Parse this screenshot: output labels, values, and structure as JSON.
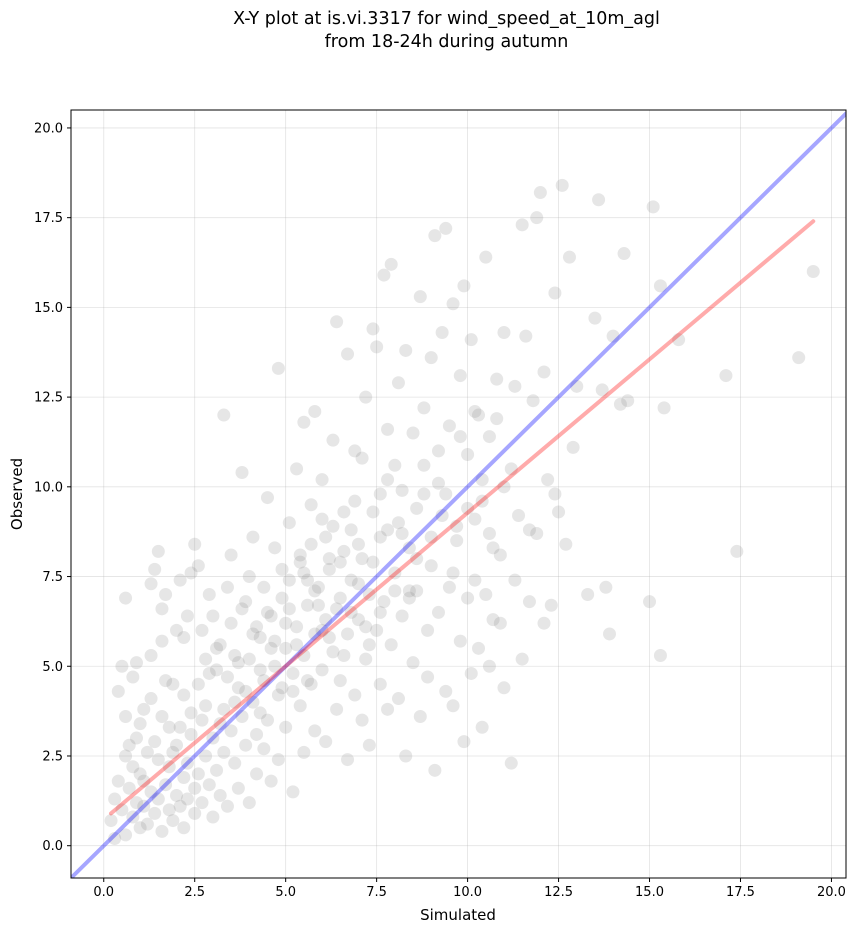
{
  "chart_data": {
    "type": "scatter",
    "title_line1": "X-Y plot at is.vi.3317 for wind_speed_at_10m_agl",
    "title_line2": "from 18-24h during autumn",
    "xlabel": "Simulated",
    "ylabel": "Observed",
    "xlim": [
      -0.9,
      20.4
    ],
    "ylim": [
      -0.9,
      20.5
    ],
    "xticks": [
      "0.0",
      "2.5",
      "5.0",
      "7.5",
      "10.0",
      "12.5",
      "15.0",
      "17.5",
      "20.0"
    ],
    "yticks": [
      "0.0",
      "2.5",
      "5.0",
      "7.5",
      "10.0",
      "12.5",
      "15.0",
      "17.5",
      "20.0"
    ],
    "grid": true,
    "point_color": "#808080",
    "reference_line": {
      "color": "#0000ff",
      "from": [
        -0.9,
        -0.9
      ],
      "to": [
        20.4,
        20.4
      ]
    },
    "fit_line": {
      "color": "#ff0000",
      "from": [
        0.2,
        0.9
      ],
      "to": [
        19.5,
        17.4
      ]
    },
    "points": [
      [
        0.3,
        1.3
      ],
      [
        0.4,
        4.3
      ],
      [
        0.5,
        5.0
      ],
      [
        0.6,
        3.6
      ],
      [
        0.6,
        6.9
      ],
      [
        0.7,
        2.8
      ],
      [
        0.8,
        2.2
      ],
      [
        0.8,
        4.7
      ],
      [
        0.9,
        5.1
      ],
      [
        1.0,
        3.4
      ],
      [
        1.1,
        1.8
      ],
      [
        1.2,
        2.6
      ],
      [
        1.3,
        5.3
      ],
      [
        1.3,
        7.3
      ],
      [
        1.4,
        7.7
      ],
      [
        1.5,
        8.2
      ],
      [
        1.6,
        5.7
      ],
      [
        1.6,
        6.6
      ],
      [
        1.7,
        7.0
      ],
      [
        1.8,
        3.3
      ],
      [
        1.9,
        4.5
      ],
      [
        2.0,
        6.0
      ],
      [
        2.1,
        7.4
      ],
      [
        2.2,
        5.8
      ],
      [
        2.3,
        6.4
      ],
      [
        2.4,
        7.6
      ],
      [
        2.5,
        8.4
      ],
      [
        2.6,
        7.8
      ],
      [
        2.7,
        6.0
      ],
      [
        2.8,
        5.2
      ],
      [
        2.9,
        7.0
      ],
      [
        3.0,
        6.4
      ],
      [
        3.1,
        4.9
      ],
      [
        3.2,
        5.6
      ],
      [
        3.3,
        12.0
      ],
      [
        3.4,
        7.2
      ],
      [
        3.5,
        8.1
      ],
      [
        3.6,
        4.0
      ],
      [
        3.7,
        5.1
      ],
      [
        3.8,
        10.4
      ],
      [
        3.9,
        6.8
      ],
      [
        4.0,
        7.5
      ],
      [
        4.1,
        8.6
      ],
      [
        4.2,
        6.1
      ],
      [
        4.3,
        3.7
      ],
      [
        4.4,
        7.2
      ],
      [
        4.5,
        9.7
      ],
      [
        4.6,
        5.5
      ],
      [
        4.7,
        8.3
      ],
      [
        4.8,
        13.3
      ],
      [
        4.9,
        7.7
      ],
      [
        5.0,
        6.2
      ],
      [
        5.1,
        9.0
      ],
      [
        5.2,
        4.3
      ],
      [
        5.3,
        10.5
      ],
      [
        5.4,
        8.1
      ],
      [
        5.5,
        11.8
      ],
      [
        5.6,
        7.4
      ],
      [
        5.7,
        9.5
      ],
      [
        5.8,
        12.1
      ],
      [
        5.9,
        6.7
      ],
      [
        6.0,
        10.2
      ],
      [
        6.1,
        8.6
      ],
      [
        6.2,
        5.8
      ],
      [
        6.3,
        11.3
      ],
      [
        6.4,
        14.6
      ],
      [
        6.5,
        7.9
      ],
      [
        6.6,
        9.3
      ],
      [
        6.7,
        13.7
      ],
      [
        6.8,
        6.5
      ],
      [
        6.9,
        11.0
      ],
      [
        7.0,
        8.4
      ],
      [
        7.1,
        10.8
      ],
      [
        7.2,
        12.5
      ],
      [
        7.3,
        5.6
      ],
      [
        7.4,
        14.4
      ],
      [
        7.5,
        13.9
      ],
      [
        7.6,
        9.8
      ],
      [
        7.7,
        15.9
      ],
      [
        7.8,
        11.6
      ],
      [
        7.9,
        16.2
      ],
      [
        8.0,
        10.6
      ],
      [
        8.1,
        12.9
      ],
      [
        8.2,
        8.7
      ],
      [
        8.3,
        13.8
      ],
      [
        8.4,
        7.1
      ],
      [
        8.5,
        11.5
      ],
      [
        8.6,
        9.4
      ],
      [
        8.7,
        15.3
      ],
      [
        8.8,
        12.2
      ],
      [
        8.9,
        6.0
      ],
      [
        9.0,
        13.6
      ],
      [
        9.1,
        17.0
      ],
      [
        9.2,
        10.1
      ],
      [
        9.3,
        14.3
      ],
      [
        9.4,
        17.2
      ],
      [
        9.5,
        11.7
      ],
      [
        9.6,
        15.1
      ],
      [
        9.7,
        8.9
      ],
      [
        9.8,
        13.1
      ],
      [
        9.9,
        15.6
      ],
      [
        10.0,
        10.9
      ],
      [
        10.1,
        14.1
      ],
      [
        10.2,
        7.4
      ],
      [
        10.3,
        12.0
      ],
      [
        10.4,
        9.6
      ],
      [
        10.5,
        16.4
      ],
      [
        10.6,
        11.4
      ],
      [
        10.7,
        6.3
      ],
      [
        10.8,
        13.0
      ],
      [
        10.9,
        8.1
      ],
      [
        11.0,
        14.3
      ],
      [
        11.2,
        10.5
      ],
      [
        11.3,
        12.8
      ],
      [
        11.4,
        9.2
      ],
      [
        11.5,
        17.3
      ],
      [
        11.6,
        14.2
      ],
      [
        11.7,
        8.8
      ],
      [
        11.8,
        12.4
      ],
      [
        11.9,
        17.5
      ],
      [
        12.0,
        18.2
      ],
      [
        12.1,
        13.2
      ],
      [
        12.2,
        10.2
      ],
      [
        12.3,
        6.7
      ],
      [
        12.4,
        15.4
      ],
      [
        12.5,
        9.3
      ],
      [
        12.6,
        18.4
      ],
      [
        12.7,
        8.4
      ],
      [
        12.8,
        16.4
      ],
      [
        12.9,
        11.1
      ],
      [
        13.0,
        12.8
      ],
      [
        13.3,
        7.0
      ],
      [
        13.5,
        14.7
      ],
      [
        13.6,
        18.0
      ],
      [
        13.7,
        12.7
      ],
      [
        13.8,
        7.2
      ],
      [
        13.9,
        5.9
      ],
      [
        14.0,
        14.2
      ],
      [
        14.2,
        12.3
      ],
      [
        14.3,
        16.5
      ],
      [
        14.4,
        12.4
      ],
      [
        15.0,
        6.8
      ],
      [
        15.1,
        17.8
      ],
      [
        15.3,
        15.6
      ],
      [
        15.4,
        12.2
      ],
      [
        15.3,
        5.3
      ],
      [
        15.8,
        14.1
      ],
      [
        17.1,
        13.1
      ],
      [
        17.4,
        8.2
      ],
      [
        19.1,
        13.6
      ],
      [
        19.5,
        16.0
      ],
      [
        0.2,
        0.7
      ],
      [
        0.3,
        0.2
      ],
      [
        0.5,
        1.0
      ],
      [
        0.6,
        0.3
      ],
      [
        0.7,
        1.6
      ],
      [
        0.8,
        0.8
      ],
      [
        0.9,
        1.2
      ],
      [
        1.0,
        0.5
      ],
      [
        1.0,
        2.0
      ],
      [
        1.1,
        1.1
      ],
      [
        1.2,
        0.6
      ],
      [
        1.3,
        1.5
      ],
      [
        1.4,
        0.9
      ],
      [
        1.5,
        2.4
      ],
      [
        1.5,
        1.3
      ],
      [
        1.6,
        0.4
      ],
      [
        1.7,
        1.7
      ],
      [
        1.8,
        1.0
      ],
      [
        1.8,
        2.2
      ],
      [
        1.9,
        0.7
      ],
      [
        2.0,
        1.4
      ],
      [
        2.0,
        2.8
      ],
      [
        2.1,
        1.1
      ],
      [
        2.2,
        1.9
      ],
      [
        2.2,
        0.5
      ],
      [
        2.3,
        2.3
      ],
      [
        2.3,
        1.3
      ],
      [
        2.4,
        3.1
      ],
      [
        2.5,
        1.6
      ],
      [
        2.5,
        0.9
      ],
      [
        2.6,
        2.0
      ],
      [
        2.7,
        1.2
      ],
      [
        2.7,
        3.5
      ],
      [
        2.8,
        2.5
      ],
      [
        2.9,
        1.7
      ],
      [
        3.0,
        0.8
      ],
      [
        3.0,
        3.0
      ],
      [
        3.1,
        2.1
      ],
      [
        3.2,
        1.4
      ],
      [
        3.3,
        3.8
      ],
      [
        3.3,
        2.6
      ],
      [
        3.4,
        1.1
      ],
      [
        3.5,
        3.2
      ],
      [
        3.6,
        2.3
      ],
      [
        3.7,
        4.4
      ],
      [
        3.7,
        1.6
      ],
      [
        3.8,
        3.6
      ],
      [
        3.9,
        2.8
      ],
      [
        4.0,
        5.2
      ],
      [
        4.0,
        1.2
      ],
      [
        4.1,
        4.0
      ],
      [
        4.2,
        3.1
      ],
      [
        4.2,
        2.0
      ],
      [
        4.3,
        5.8
      ],
      [
        4.4,
        4.6
      ],
      [
        4.4,
        2.7
      ],
      [
        4.5,
        3.5
      ],
      [
        4.6,
        6.4
      ],
      [
        4.6,
        1.8
      ],
      [
        4.7,
        5.0
      ],
      [
        4.8,
        4.2
      ],
      [
        4.8,
        2.4
      ],
      [
        4.9,
        6.9
      ],
      [
        5.0,
        5.5
      ],
      [
        5.0,
        3.3
      ],
      [
        5.1,
        7.4
      ],
      [
        5.2,
        4.8
      ],
      [
        5.2,
        1.5
      ],
      [
        5.3,
        6.1
      ],
      [
        5.4,
        3.9
      ],
      [
        5.4,
        7.9
      ],
      [
        5.5,
        5.3
      ],
      [
        5.5,
        2.6
      ],
      [
        5.6,
        6.7
      ],
      [
        5.7,
        4.5
      ],
      [
        5.7,
        8.4
      ],
      [
        5.8,
        5.9
      ],
      [
        5.8,
        3.2
      ],
      [
        5.9,
        7.2
      ],
      [
        6.0,
        4.9
      ],
      [
        6.0,
        9.1
      ],
      [
        6.1,
        6.3
      ],
      [
        6.1,
        2.9
      ],
      [
        6.2,
        7.7
      ],
      [
        6.3,
        5.4
      ],
      [
        6.3,
        8.9
      ],
      [
        6.4,
        3.8
      ],
      [
        6.5,
        6.9
      ],
      [
        6.5,
        4.6
      ],
      [
        6.6,
        8.2
      ],
      [
        6.7,
        5.9
      ],
      [
        6.7,
        2.4
      ],
      [
        6.8,
        7.4
      ],
      [
        6.9,
        4.2
      ],
      [
        6.9,
        9.6
      ],
      [
        7.0,
        6.3
      ],
      [
        7.1,
        3.5
      ],
      [
        7.1,
        8.0
      ],
      [
        7.2,
        5.2
      ],
      [
        7.3,
        7.0
      ],
      [
        7.3,
        2.8
      ],
      [
        7.4,
        9.3
      ],
      [
        7.5,
        6.0
      ],
      [
        7.6,
        4.5
      ],
      [
        7.6,
        8.6
      ],
      [
        7.7,
        6.8
      ],
      [
        7.8,
        3.8
      ],
      [
        7.8,
        10.2
      ],
      [
        7.9,
        5.6
      ],
      [
        8.0,
        7.6
      ],
      [
        8.1,
        4.1
      ],
      [
        8.1,
        9.0
      ],
      [
        8.2,
        6.4
      ],
      [
        8.3,
        2.5
      ],
      [
        8.4,
        8.3
      ],
      [
        8.5,
        5.1
      ],
      [
        8.6,
        7.1
      ],
      [
        8.7,
        3.6
      ],
      [
        8.8,
        9.8
      ],
      [
        8.9,
        4.7
      ],
      [
        9.0,
        7.8
      ],
      [
        9.1,
        2.1
      ],
      [
        9.2,
        6.5
      ],
      [
        9.3,
        9.2
      ],
      [
        9.4,
        4.3
      ],
      [
        9.5,
        7.2
      ],
      [
        9.6,
        3.9
      ],
      [
        9.7,
        8.5
      ],
      [
        9.8,
        5.7
      ],
      [
        9.9,
        2.9
      ],
      [
        10.0,
        6.9
      ],
      [
        10.1,
        4.8
      ],
      [
        10.2,
        9.1
      ],
      [
        10.3,
        5.5
      ],
      [
        10.4,
        3.3
      ],
      [
        10.5,
        7.0
      ],
      [
        10.6,
        5.0
      ],
      [
        10.7,
        8.3
      ],
      [
        10.9,
        6.2
      ],
      [
        11.0,
        4.4
      ],
      [
        11.2,
        2.3
      ],
      [
        11.3,
        7.4
      ],
      [
        11.5,
        5.2
      ],
      [
        11.7,
        6.8
      ],
      [
        11.9,
        8.7
      ],
      [
        12.1,
        6.2
      ],
      [
        12.4,
        9.8
      ],
      [
        0.4,
        1.8
      ],
      [
        0.6,
        2.5
      ],
      [
        0.9,
        3.0
      ],
      [
        1.1,
        3.8
      ],
      [
        1.3,
        4.1
      ],
      [
        1.4,
        2.9
      ],
      [
        1.6,
        3.6
      ],
      [
        1.7,
        4.6
      ],
      [
        1.9,
        2.6
      ],
      [
        2.1,
        3.3
      ],
      [
        2.2,
        4.2
      ],
      [
        2.4,
        3.7
      ],
      [
        2.6,
        4.5
      ],
      [
        2.8,
        3.9
      ],
      [
        2.9,
        4.8
      ],
      [
        3.1,
        5.5
      ],
      [
        3.2,
        3.4
      ],
      [
        3.4,
        4.7
      ],
      [
        3.5,
        6.2
      ],
      [
        3.6,
        5.3
      ],
      [
        3.8,
        6.6
      ],
      [
        3.9,
        4.3
      ],
      [
        4.1,
        5.9
      ],
      [
        4.3,
        4.9
      ],
      [
        4.5,
        6.5
      ],
      [
        4.7,
        5.7
      ],
      [
        4.9,
        4.4
      ],
      [
        5.1,
        6.6
      ],
      [
        5.3,
        5.6
      ],
      [
        5.5,
        7.6
      ],
      [
        5.6,
        4.6
      ],
      [
        5.8,
        7.1
      ],
      [
        6.0,
        6.0
      ],
      [
        6.2,
        8.0
      ],
      [
        6.4,
        6.6
      ],
      [
        6.6,
        5.3
      ],
      [
        6.8,
        8.8
      ],
      [
        7.0,
        7.3
      ],
      [
        7.2,
        6.1
      ],
      [
        7.4,
        7.9
      ],
      [
        7.6,
        6.5
      ],
      [
        7.8,
        8.8
      ],
      [
        8.0,
        7.1
      ],
      [
        8.2,
        9.9
      ],
      [
        8.4,
        6.9
      ],
      [
        8.6,
        8.0
      ],
      [
        8.8,
        10.6
      ],
      [
        9.0,
        8.6
      ],
      [
        9.2,
        11.0
      ],
      [
        9.4,
        9.8
      ],
      [
        9.6,
        7.6
      ],
      [
        9.8,
        11.4
      ],
      [
        10.0,
        9.4
      ],
      [
        10.2,
        12.1
      ],
      [
        10.4,
        10.2
      ],
      [
        10.6,
        8.7
      ],
      [
        10.8,
        11.9
      ],
      [
        11.0,
        10.0
      ]
    ]
  }
}
